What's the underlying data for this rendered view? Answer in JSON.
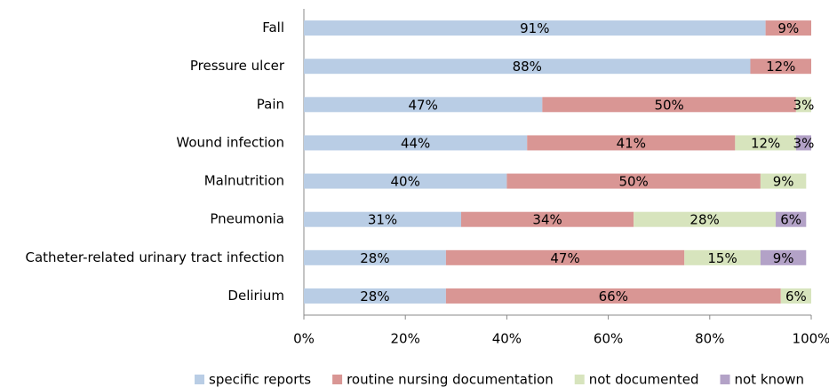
{
  "chart_data": {
    "type": "stacked-barh",
    "categories": [
      "Fall",
      "Pressure ulcer",
      "Pain",
      "Wound infection",
      "Malnutrition",
      "Pneumonia",
      "Catheter-related urinary tract infection",
      "Delirium"
    ],
    "series": [
      {
        "name": "specific reports",
        "color": "#b9cde5",
        "values": [
          91,
          88,
          47,
          44,
          40,
          31,
          28,
          28
        ],
        "value_labels": [
          "91%",
          "88%",
          "47%",
          "44%",
          "40%",
          "31%",
          "28%",
          "28%"
        ]
      },
      {
        "name": "routine nursing documentation",
        "color": "#d99694",
        "values": [
          9,
          12,
          50,
          41,
          50,
          34,
          47,
          66
        ],
        "value_labels": [
          "9%",
          "12%",
          "50%",
          "41%",
          "50%",
          "34%",
          "47%",
          "66%"
        ]
      },
      {
        "name": "not documented",
        "color": "#d7e4bd",
        "values": [
          null,
          null,
          3,
          12,
          9,
          28,
          15,
          6
        ],
        "value_labels": [
          null,
          null,
          "3%",
          "12%",
          "9%",
          "28%",
          "15%",
          "6%"
        ]
      },
      {
        "name": "not known",
        "color": "#b3a2c7",
        "values": [
          null,
          null,
          null,
          3,
          null,
          6,
          9,
          null
        ],
        "value_labels": [
          null,
          null,
          null,
          "3%",
          null,
          "6%",
          "9%",
          null
        ]
      }
    ],
    "xlim": [
      0,
      100
    ],
    "xticks": [
      {
        "value": 0,
        "label": "0%"
      },
      {
        "value": 20,
        "label": "20%"
      },
      {
        "value": 40,
        "label": "40%"
      },
      {
        "value": 60,
        "label": "60%"
      },
      {
        "value": 80,
        "label": "80%"
      },
      {
        "value": 100,
        "label": "100%"
      }
    ],
    "legend": "bottom"
  }
}
